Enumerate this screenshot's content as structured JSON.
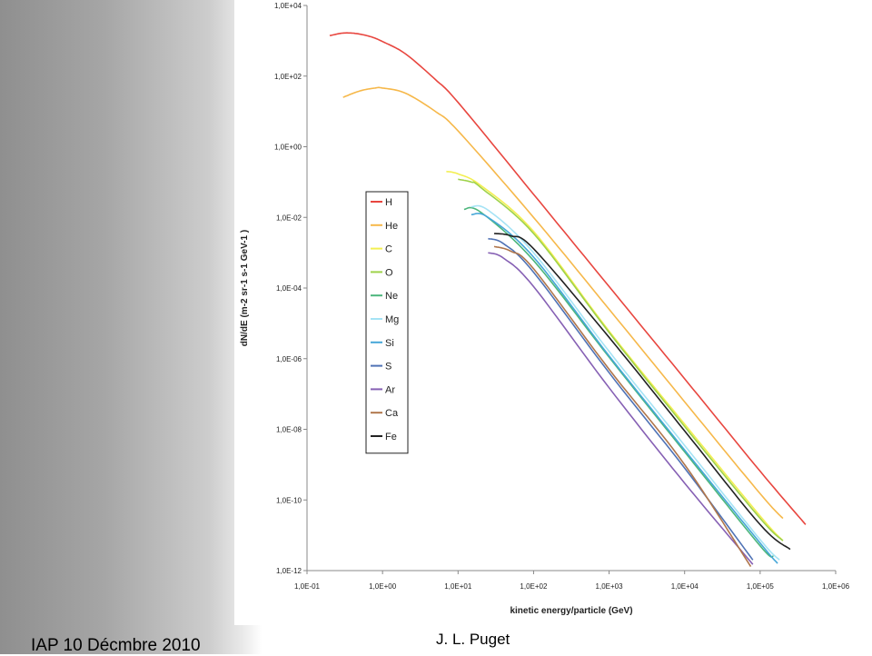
{
  "footer": {
    "left_text": "IAP 10 Décmbre 2010",
    "author": "J. L. Puget"
  },
  "chart_data": {
    "type": "line",
    "title": "",
    "xlabel": "kinetic energy/particle (GeV)",
    "ylabel": "dN/dE (m-2 sr-1 s-1 GeV-1 )",
    "x_scale": "log",
    "y_scale": "log",
    "xlim": [
      0.1,
      1000000
    ],
    "ylim": [
      1e-12,
      10000
    ],
    "x_ticks": [
      "1,0E-01",
      "1,0E+00",
      "1,0E+01",
      "1,0E+02",
      "1,0E+03",
      "1,0E+04",
      "1,0E+05",
      "1,0E+06"
    ],
    "y_ticks": [
      "1,0E+04",
      "1,0E+02",
      "1,0E+00",
      "1,0E-02",
      "1,0E-04",
      "1,0E-06",
      "1,0E-08",
      "1,0E-10",
      "1,0E-12"
    ],
    "grid": false,
    "legend_position": "left",
    "series": [
      {
        "name": "H",
        "color": "#e8463f",
        "x": [
          0.2,
          0.3,
          0.45,
          0.7,
          1,
          2,
          5,
          10,
          100,
          1000,
          10000,
          100000,
          400000
        ],
        "y": [
          1400,
          1650,
          1600,
          1300,
          950,
          430,
          80,
          18,
          0.045,
          0.00011,
          2.7e-07,
          6.5e-10,
          2e-11
        ]
      },
      {
        "name": "He",
        "color": "#f6b84a",
        "x": [
          0.3,
          0.5,
          0.8,
          1,
          2,
          5,
          10,
          100,
          1000,
          10000,
          100000,
          200000
        ],
        "y": [
          25,
          38,
          46,
          46,
          33,
          10,
          2.8,
          0.01,
          2.5e-05,
          6e-08,
          1.5e-10,
          3e-11
        ]
      },
      {
        "name": "C",
        "color": "#f3ef52",
        "x": [
          7,
          10,
          20,
          100,
          1000,
          10000,
          100000,
          200000
        ],
        "y": [
          0.2,
          0.17,
          0.08,
          0.004,
          6e-06,
          1.4e-08,
          3.5e-11,
          7e-12
        ]
      },
      {
        "name": "O",
        "color": "#9ed24a",
        "x": [
          10,
          15,
          20,
          100,
          1000,
          10000,
          100000,
          200000
        ],
        "y": [
          0.12,
          0.1,
          0.07,
          0.0035,
          5.5e-06,
          1.2e-08,
          3e-11,
          7e-12
        ]
      },
      {
        "name": "Ne",
        "color": "#4cb67c",
        "x": [
          12,
          20,
          100,
          1000,
          10000,
          100000,
          150000
        ],
        "y": [
          0.017,
          0.014,
          0.0006,
          1.1e-06,
          2.3e-09,
          5e-12,
          2.5e-12
        ]
      },
      {
        "name": "Mg",
        "color": "#a5e3f5",
        "x": [
          15,
          25,
          100,
          1000,
          10000,
          100000,
          180000
        ],
        "y": [
          0.02,
          0.016,
          0.001,
          1.6e-06,
          3.5e-09,
          7.5e-12,
          2e-12
        ]
      },
      {
        "name": "Si",
        "color": "#46a7d8",
        "x": [
          15,
          25,
          100,
          1000,
          10000,
          100000,
          170000
        ],
        "y": [
          0.012,
          0.01,
          0.00075,
          1.2e-06,
          2.6e-09,
          6e-12,
          1.6e-12
        ]
      },
      {
        "name": "S",
        "color": "#4f72b5",
        "x": [
          25,
          40,
          100,
          1000,
          10000,
          80000
        ],
        "y": [
          0.0025,
          0.0018,
          0.00028,
          4e-07,
          8e-10,
          2e-12
        ]
      },
      {
        "name": "Ar",
        "color": "#8660b4",
        "x": [
          25,
          40,
          100,
          1000,
          10000,
          80000
        ],
        "y": [
          0.001,
          0.0007,
          0.00011,
          1.5e-07,
          3e-10,
          1.5e-12
        ]
      },
      {
        "name": "Ca",
        "color": "#b0764b",
        "x": [
          30,
          50,
          100,
          1000,
          10000,
          75000
        ],
        "y": [
          0.0015,
          0.0011,
          0.00035,
          5e-07,
          1e-09,
          1.3e-12
        ]
      },
      {
        "name": "Fe",
        "color": "#222222",
        "x": [
          30,
          50,
          100,
          1000,
          10000,
          100000,
          250000
        ],
        "y": [
          0.0035,
          0.003,
          0.0013,
          4e-06,
          9e-09,
          2e-11,
          4e-12
        ]
      }
    ]
  }
}
